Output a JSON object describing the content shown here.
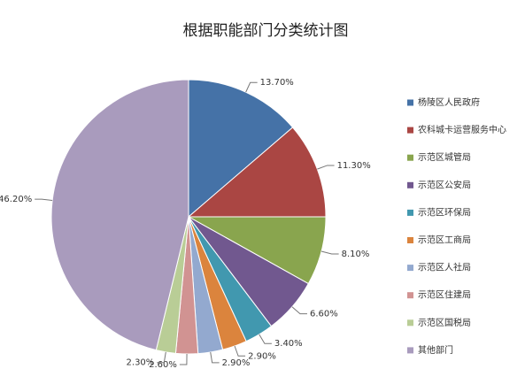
{
  "chart_data": {
    "type": "pie",
    "title": "根据职能部门分类统计图",
    "categories": [
      "杨陵区人民政府",
      "农科城卡运营服务中心",
      "示范区城管局",
      "示范区公安局",
      "示范区环保局",
      "示范区工商局",
      "示范区人社局",
      "示范区住建局",
      "示范区国税局",
      "其他部门"
    ],
    "values": [
      13.7,
      11.3,
      8.1,
      6.6,
      3.4,
      2.9,
      2.9,
      2.6,
      2.3,
      46.2
    ],
    "value_labels": [
      "13.70%",
      "11.30%",
      "8.10%",
      "6.60%",
      "3.40%",
      "2.90%",
      "2.90%",
      "2.60%",
      "2.30%",
      "46.20%"
    ],
    "colors": [
      "#4572a7",
      "#aa4643",
      "#89a54e",
      "#71588f",
      "#4198af",
      "#db843d",
      "#93a9cf",
      "#d19392",
      "#b9cd96",
      "#a99bbd"
    ],
    "legend": "right"
  }
}
